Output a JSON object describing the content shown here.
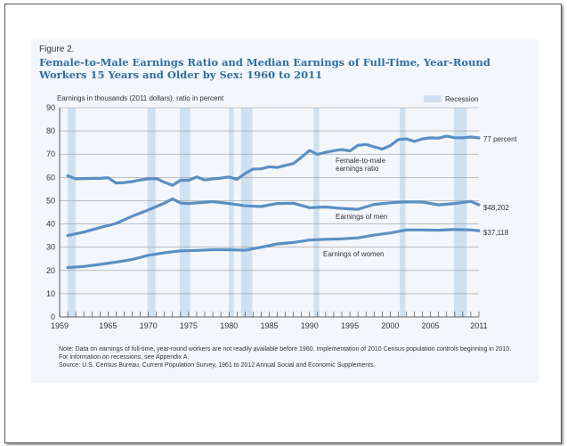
{
  "figure": {
    "label": "Figure 2.",
    "title": "Female-to-Male Earnings Ratio and Median Earnings of Full-Time, Year-Round Workers 15 Years and Older by Sex: 1960 to 2011",
    "note": "Note: Data on earnings of full-time, year-round workers are not readily available before 1960. Implementation of 2010 Census population controls beginning in 2010. For information on recessions, see Appendix A.",
    "source": "Source: U.S. Census Bureau, Current Population Survey, 1961 to 2012 Annual Social and Economic Supplements."
  },
  "chart_data": {
    "type": "line",
    "ylabel": "Earnings in thousands (2011 dollars), ratio in percent",
    "xlim": [
      1959,
      2011
    ],
    "ylim": [
      0,
      90
    ],
    "x_ticks": [
      1959,
      1965,
      1970,
      1975,
      1980,
      1985,
      1990,
      1995,
      2000,
      2005,
      2011
    ],
    "y_ticks": [
      0,
      10,
      20,
      30,
      40,
      50,
      60,
      70,
      80,
      90
    ],
    "grid": "horizontal",
    "legend": {
      "label": "Recession",
      "placement": "top-right",
      "color": "#cfe0f0"
    },
    "line_color": "#5b8fc4",
    "recessions": [
      [
        1960,
        1961
      ],
      [
        1969.9,
        1970.9
      ],
      [
        1973.9,
        1975.2
      ],
      [
        1980,
        1980.6
      ],
      [
        1981.5,
        1982.9
      ],
      [
        1990.5,
        1991.2
      ],
      [
        2001.2,
        2001.9
      ],
      [
        2007.9,
        2009.5
      ]
    ],
    "series": [
      {
        "name": "Female-to-male earnings ratio",
        "end_label": "77 percent",
        "x": [
          1960,
          1961,
          1962,
          1963,
          1964,
          1965,
          1966,
          1967,
          1968,
          1969,
          1970,
          1971,
          1972,
          1973,
          1974,
          1975,
          1976,
          1977,
          1978,
          1979,
          1980,
          1981,
          1982,
          1983,
          1984,
          1985,
          1986,
          1987,
          1988,
          1989,
          1990,
          1991,
          1992,
          1993,
          1994,
          1995,
          1996,
          1997,
          1998,
          1999,
          2000,
          2001,
          2002,
          2003,
          2004,
          2005,
          2006,
          2007,
          2008,
          2009,
          2010,
          2011
        ],
        "values": [
          60.7,
          59.4,
          59.5,
          59.6,
          59.6,
          59.9,
          57.6,
          57.8,
          58.2,
          58.9,
          59.4,
          59.5,
          57.9,
          56.6,
          58.8,
          58.8,
          60.2,
          58.9,
          59.4,
          59.7,
          60.2,
          59.2,
          61.7,
          63.6,
          63.7,
          64.6,
          64.3,
          65.2,
          66.0,
          68.7,
          71.6,
          69.9,
          70.8,
          71.5,
          72.0,
          71.4,
          73.8,
          74.2,
          73.2,
          72.2,
          73.7,
          76.3,
          76.6,
          75.5,
          76.6,
          77.0,
          76.9,
          77.8,
          77.1,
          77.0,
          77.4,
          77.0
        ]
      },
      {
        "name": "Earnings of men",
        "end_label": "$48,202",
        "x": [
          1960,
          1962,
          1964,
          1966,
          1968,
          1970,
          1972,
          1973,
          1974,
          1975,
          1978,
          1980,
          1982,
          1984,
          1986,
          1988,
          1990,
          1992,
          1994,
          1996,
          1998,
          2000,
          2002,
          2004,
          2006,
          2008,
          2010,
          2011
        ],
        "values": [
          35.0,
          36.5,
          38.4,
          40.2,
          43.3,
          46.0,
          49.0,
          50.8,
          49.0,
          48.8,
          49.6,
          48.8,
          47.8,
          47.5,
          48.8,
          48.9,
          47.0,
          47.3,
          46.7,
          46.3,
          48.4,
          49.1,
          49.5,
          49.4,
          48.2,
          48.8,
          49.7,
          48.2
        ]
      },
      {
        "name": "Earnings of women",
        "end_label": "$37,118",
        "x": [
          1960,
          1962,
          1964,
          1966,
          1968,
          1970,
          1972,
          1974,
          1976,
          1978,
          1980,
          1982,
          1984,
          1986,
          1988,
          1990,
          1992,
          1994,
          1996,
          1998,
          2000,
          2002,
          2004,
          2006,
          2008,
          2010,
          2011
        ],
        "values": [
          21.2,
          21.7,
          22.6,
          23.6,
          24.7,
          26.5,
          27.6,
          28.4,
          28.6,
          28.9,
          28.9,
          28.7,
          30.0,
          31.4,
          32.0,
          33.1,
          33.4,
          33.6,
          34.0,
          35.2,
          36.1,
          37.4,
          37.4,
          37.3,
          37.6,
          37.4,
          37.1
        ]
      }
    ]
  }
}
